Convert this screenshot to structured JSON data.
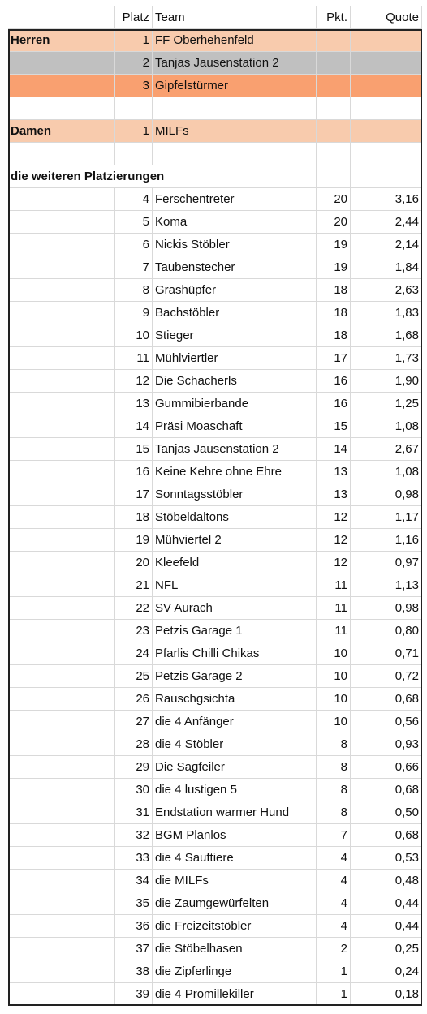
{
  "header": {
    "platz": "Platz",
    "team": "Team",
    "pkt": "Pkt.",
    "quote": "Quote"
  },
  "podium": [
    {
      "group": "Herren",
      "platz": 1,
      "team": "FF Oberhehenfeld"
    },
    {
      "platz": 2,
      "team": "Tanjas Jausenstation 2"
    },
    {
      "platz": 3,
      "team": "Gipfelstürmer"
    },
    {
      "group": "Damen",
      "platz": 1,
      "team": "MILFs"
    }
  ],
  "section_title": "die weiteren Platzierungen",
  "rows": [
    [
      4,
      "Ferschentreter",
      20,
      "3,16"
    ],
    [
      5,
      "Koma",
      20,
      "2,44"
    ],
    [
      6,
      "Nickis Stöbler",
      19,
      "2,14"
    ],
    [
      7,
      "Taubenstecher",
      19,
      "1,84"
    ],
    [
      8,
      "Grashüpfer",
      18,
      "2,63"
    ],
    [
      9,
      "Bachstöbler",
      18,
      "1,83"
    ],
    [
      10,
      "Stieger",
      18,
      "1,68"
    ],
    [
      11,
      "Mühlviertler",
      17,
      "1,73"
    ],
    [
      12,
      "Die Schacherls",
      16,
      "1,90"
    ],
    [
      13,
      "Gummibierbande",
      16,
      "1,25"
    ],
    [
      14,
      "Präsi Moaschaft",
      15,
      "1,08"
    ],
    [
      15,
      "Tanjas Jausenstation 2",
      14,
      "2,67"
    ],
    [
      16,
      "Keine Kehre ohne Ehre",
      13,
      "1,08"
    ],
    [
      17,
      "Sonntagsstöbler",
      13,
      "0,98"
    ],
    [
      18,
      "Stöbeldaltons",
      12,
      "1,17"
    ],
    [
      19,
      "Mühviertel 2",
      12,
      "1,16"
    ],
    [
      20,
      "Kleefeld",
      12,
      "0,97"
    ],
    [
      21,
      "NFL",
      11,
      "1,13"
    ],
    [
      22,
      "SV Aurach",
      11,
      "0,98"
    ],
    [
      23,
      "Petzis Garage 1",
      11,
      "0,80"
    ],
    [
      24,
      "Pfarlis Chilli Chikas",
      10,
      "0,71"
    ],
    [
      25,
      "Petzis Garage 2",
      10,
      "0,72"
    ],
    [
      26,
      "Rauschgsichta",
      10,
      "0,68"
    ],
    [
      27,
      "die 4 Anfänger",
      10,
      "0,56"
    ],
    [
      28,
      "die 4 Stöbler",
      8,
      "0,93"
    ],
    [
      29,
      "Die Sagfeiler",
      8,
      "0,66"
    ],
    [
      30,
      "die 4 lustigen 5",
      8,
      "0,68"
    ],
    [
      31,
      "Endstation warmer Hund",
      8,
      "0,50"
    ],
    [
      32,
      "BGM Planlos",
      7,
      "0,68"
    ],
    [
      33,
      "die 4 Sauftiere",
      4,
      "0,53"
    ],
    [
      34,
      "die MILFs",
      4,
      "0,48"
    ],
    [
      35,
      "die Zaumgewürfelten",
      4,
      "0,44"
    ],
    [
      36,
      "die Freizeitstöbler",
      4,
      "0,44"
    ],
    [
      37,
      "die Stöbelhasen",
      2,
      "0,25"
    ],
    [
      38,
      "die Zipferlinge",
      1,
      "0,24"
    ],
    [
      39,
      "die 4 Promillekiller",
      1,
      "0,18"
    ]
  ]
}
